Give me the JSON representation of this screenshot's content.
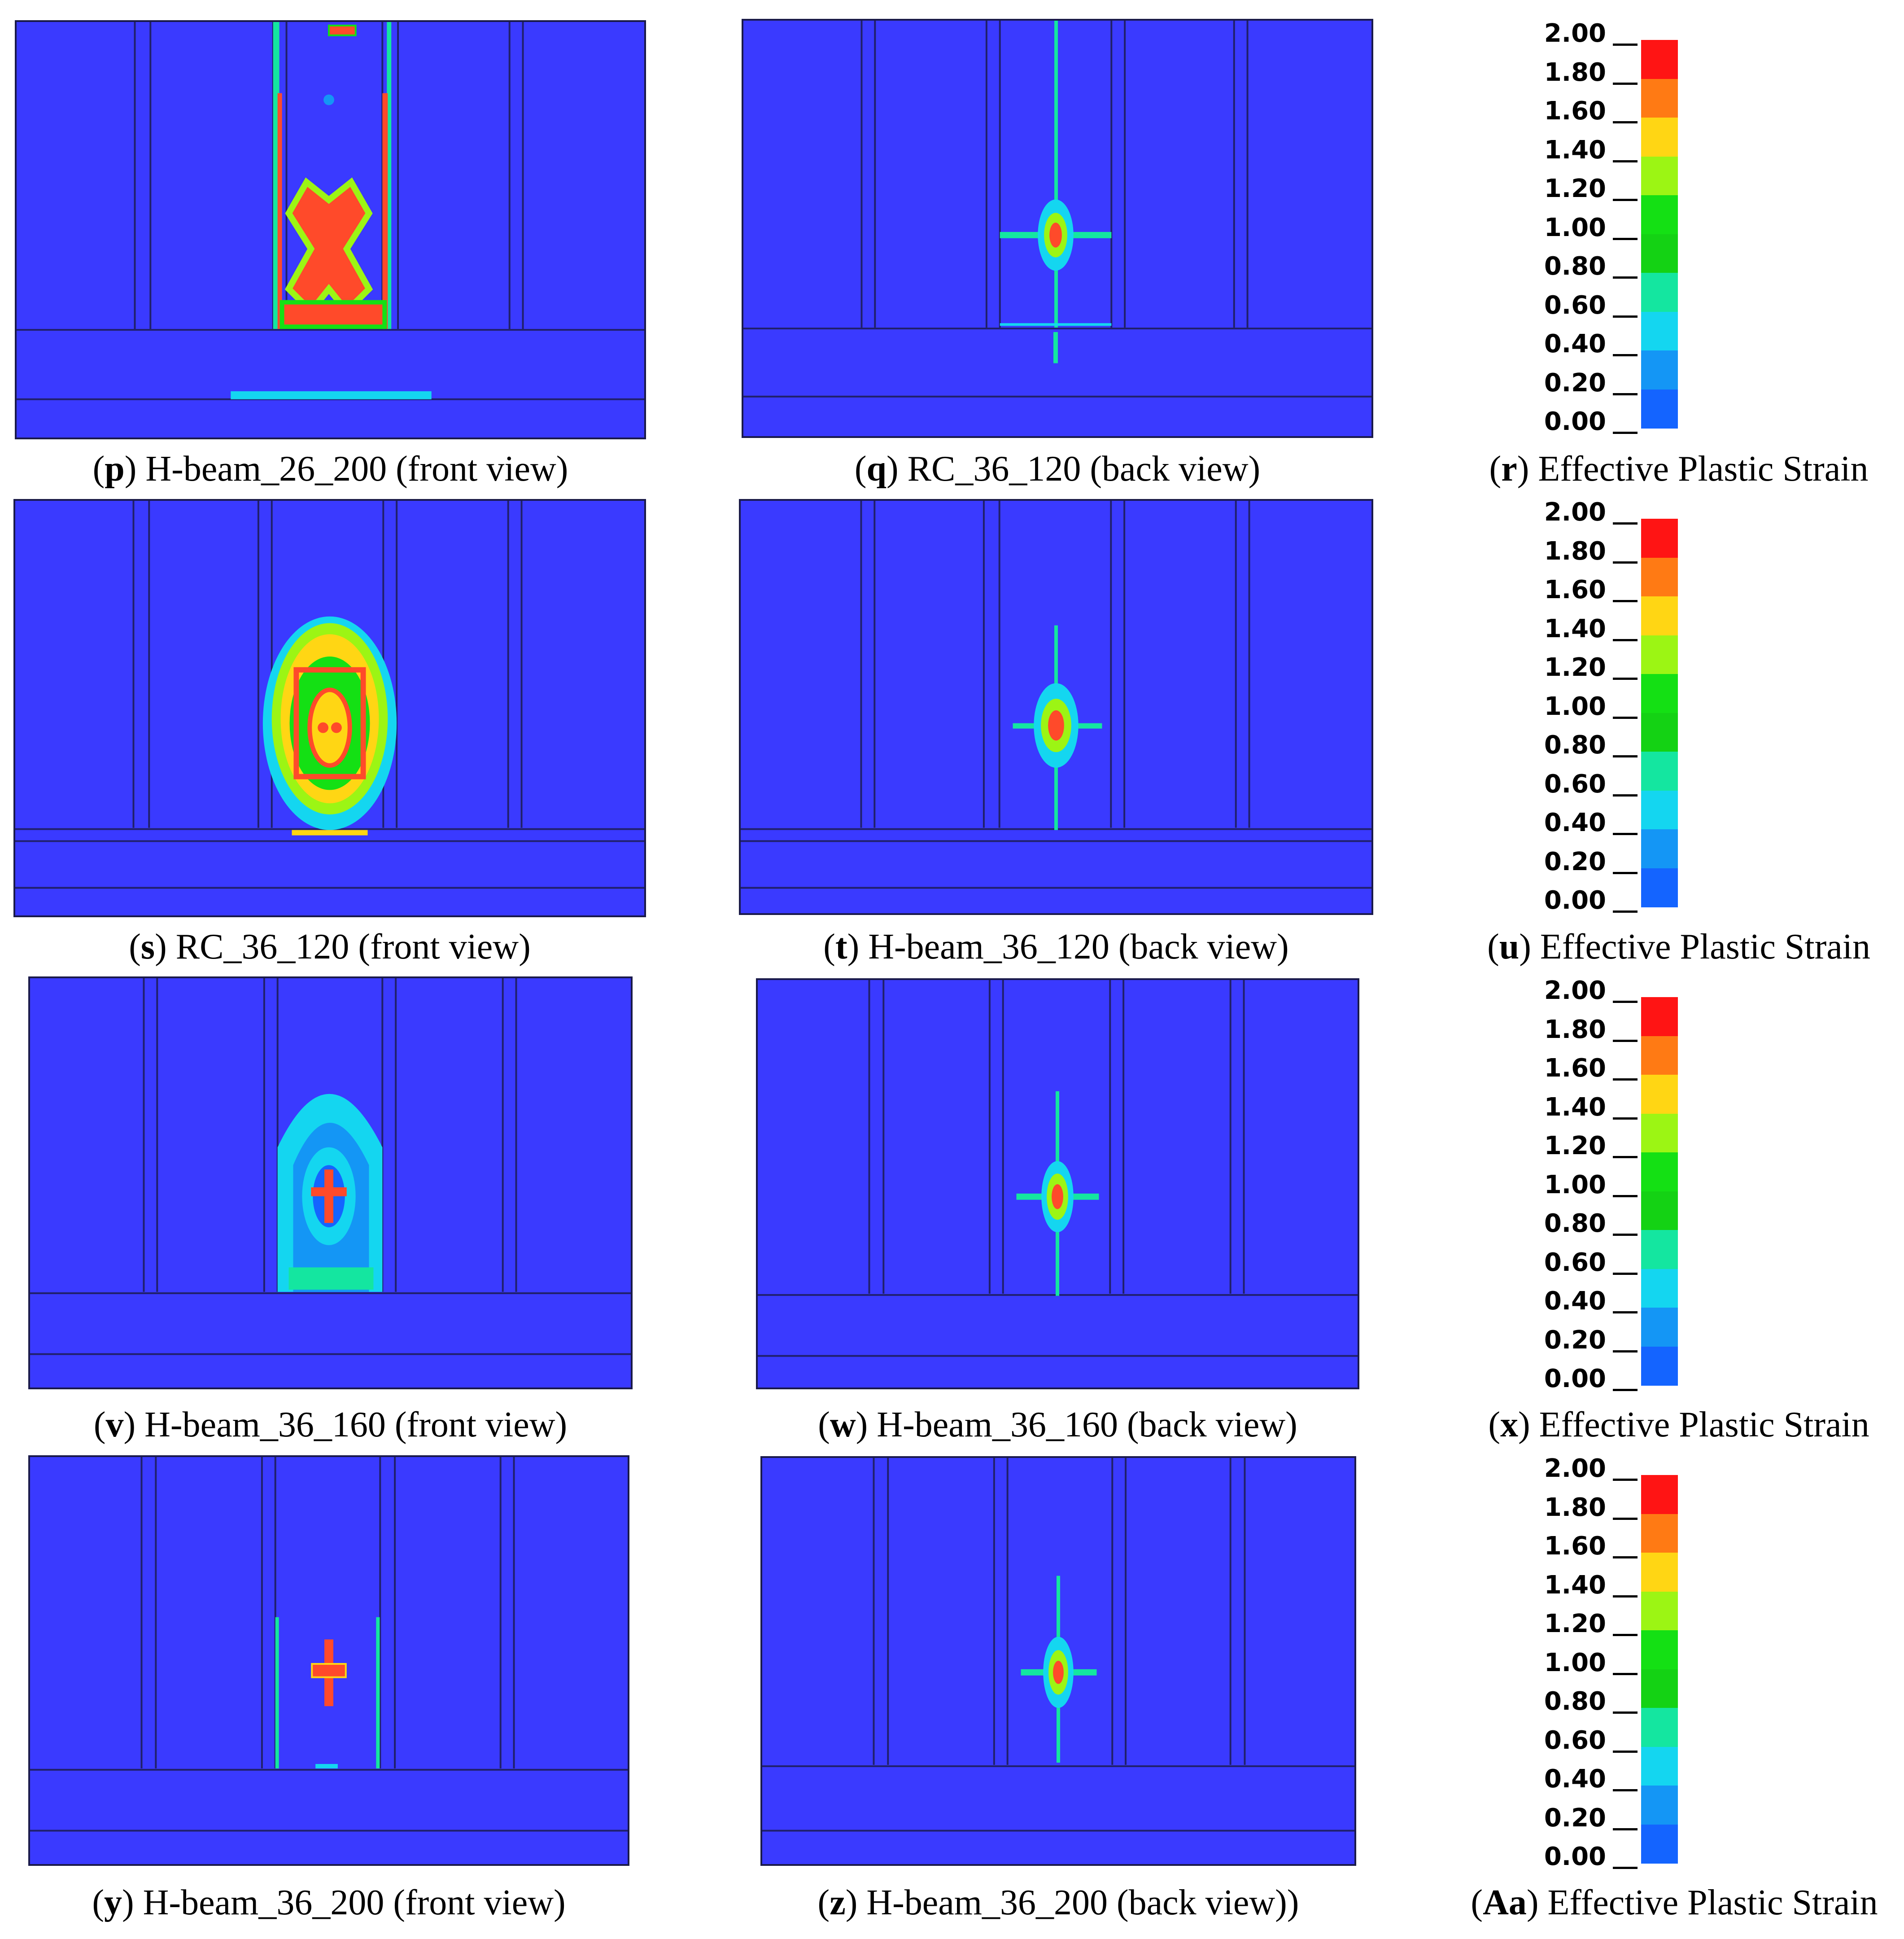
{
  "colorbar": {
    "ticks": [
      "2.00",
      "1.80",
      "1.60",
      "1.40",
      "1.20",
      "1.00",
      "0.80",
      "0.60",
      "0.40",
      "0.20",
      "0.00"
    ],
    "colors": [
      "#ff1414",
      "#ff7a14",
      "#ffd614",
      "#9cf514",
      "#14e014",
      "#14d214",
      "#14e6a0",
      "#14d6f0",
      "#1496f5",
      "#1464ff",
      "#1414f0"
    ]
  },
  "panels": {
    "p": {
      "letter": "p",
      "label": "H-beam_26_200 (front view)"
    },
    "q": {
      "letter": "q",
      "label": "RC_36_120 (back view)"
    },
    "r": {
      "letter": "r",
      "label": "Effective Plastic Strain"
    },
    "s": {
      "letter": "s",
      "label": "RC_36_120 (front view)"
    },
    "t": {
      "letter": "t",
      "label": "H-beam_36_120 (back view)"
    },
    "u": {
      "letter": "u",
      "label": "Effective Plastic Strain"
    },
    "v": {
      "letter": "v",
      "label": "H-beam_36_160 (front view)"
    },
    "w": {
      "letter": "w",
      "label": "H-beam_36_160 (back view)"
    },
    "x": {
      "letter": "x",
      "label": "Effective Plastic Strain"
    },
    "y": {
      "letter": "y",
      "label": "H-beam_36_200 (front view)"
    },
    "z": {
      "letter": "z",
      "label": "H-beam_36_200 (back view))"
    },
    "Aa": {
      "letter": "Aa",
      "label": "Effective Plastic Strain"
    }
  }
}
